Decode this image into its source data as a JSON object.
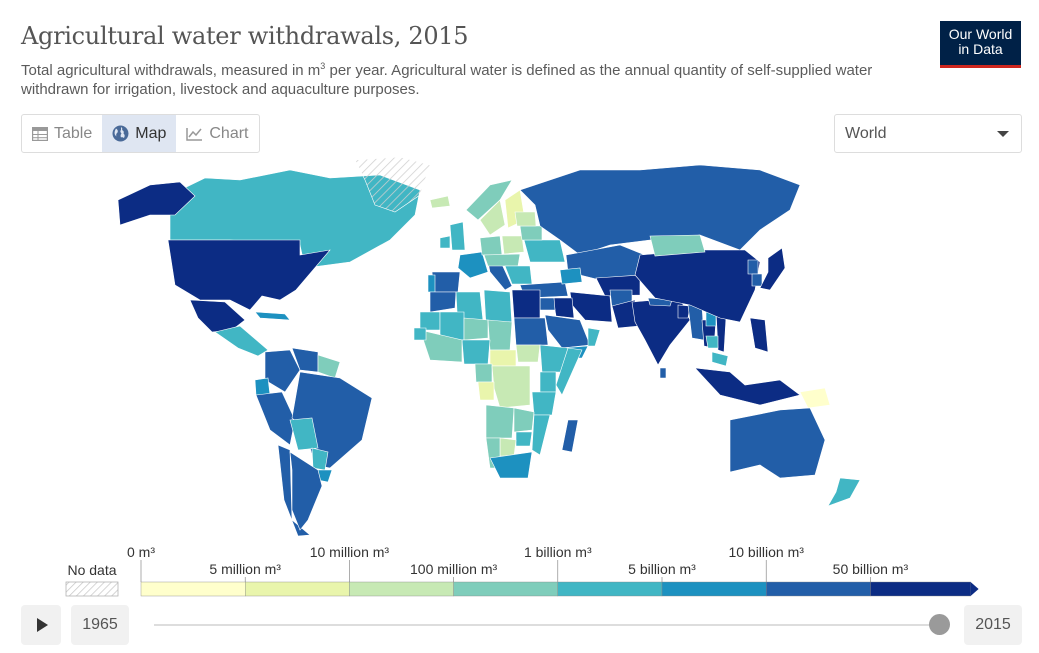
{
  "header": {
    "title": "Agricultural water withdrawals, 2015",
    "subtitle_part1": "Total agricultural withdrawals, measured in m",
    "subtitle_sup": "3",
    "subtitle_part2": " per year. Agricultural water is defined as the annual quantity of self-supplied water withdrawn for irrigation, livestock and aquaculture purposes."
  },
  "logo": {
    "line1": "Our World",
    "line2": "in Data"
  },
  "tabs": [
    {
      "label": "Table",
      "icon": "table-icon",
      "active": false
    },
    {
      "label": "Map",
      "icon": "globe-icon",
      "active": true
    },
    {
      "label": "Chart",
      "icon": "line-chart-icon",
      "active": false
    }
  ],
  "region_select": {
    "value": "World"
  },
  "chart_data": {
    "type": "choropleth-map",
    "region": "World",
    "year": 2015,
    "legend": {
      "no_data_label": "No data",
      "bins": [
        {
          "from": "0 m³",
          "to": "5 million m³",
          "color": "#ffffcc"
        },
        {
          "from": "5 million m³",
          "to": "10 million m³",
          "color": "#e9f5ac"
        },
        {
          "from": "10 million m³",
          "to": "100 million m³",
          "color": "#c7e9b4"
        },
        {
          "from": "100 million m³",
          "to": "1 billion m³",
          "color": "#7fcdbb"
        },
        {
          "from": "1 billion m³",
          "to": "5 billion m³",
          "color": "#41b6c4"
        },
        {
          "from": "5 billion m³",
          "to": "10 billion m³",
          "color": "#1d91c0"
        },
        {
          "from": "10 billion m³",
          "to": "50 billion m³",
          "color": "#225ea8"
        },
        {
          "from": "50 billion m³",
          "to": "",
          "color": "#0c2c84"
        }
      ],
      "top_labels": [
        "0 m³",
        "10 million m³",
        "1 billion m³",
        "10 billion m³"
      ],
      "bottom_labels": [
        "5 million m³",
        "100 million m³",
        "5 billion m³",
        "50 billion m³"
      ]
    },
    "regions": [
      {
        "name": "Canada",
        "bin": 4
      },
      {
        "name": "Alaska",
        "bin": 7
      },
      {
        "name": "Greenland",
        "bin": -1
      },
      {
        "name": "United States",
        "bin": 7
      },
      {
        "name": "Mexico",
        "bin": 7
      },
      {
        "name": "Central America",
        "bin": 4
      },
      {
        "name": "Cuba",
        "bin": 5
      },
      {
        "name": "Colombia",
        "bin": 6
      },
      {
        "name": "Venezuela",
        "bin": 6
      },
      {
        "name": "Guyanas",
        "bin": 3
      },
      {
        "name": "Ecuador",
        "bin": 5
      },
      {
        "name": "Peru",
        "bin": 6
      },
      {
        "name": "Brazil",
        "bin": 6
      },
      {
        "name": "Bolivia",
        "bin": 4
      },
      {
        "name": "Paraguay",
        "bin": 4
      },
      {
        "name": "Uruguay",
        "bin": 5
      },
      {
        "name": "Chile",
        "bin": 6
      },
      {
        "name": "Argentina",
        "bin": 6
      },
      {
        "name": "Iceland",
        "bin": 2
      },
      {
        "name": "Norway",
        "bin": 3
      },
      {
        "name": "Sweden",
        "bin": 2
      },
      {
        "name": "Finland",
        "bin": 1
      },
      {
        "name": "United Kingdom",
        "bin": 4
      },
      {
        "name": "Ireland",
        "bin": 4
      },
      {
        "name": "France",
        "bin": 5
      },
      {
        "name": "Spain",
        "bin": 6
      },
      {
        "name": "Portugal",
        "bin": 5
      },
      {
        "name": "Germany",
        "bin": 3
      },
      {
        "name": "Poland",
        "bin": 2
      },
      {
        "name": "Italy",
        "bin": 6
      },
      {
        "name": "Central Europe",
        "bin": 3
      },
      {
        "name": "Balkans",
        "bin": 4
      },
      {
        "name": "Ukraine",
        "bin": 4
      },
      {
        "name": "Belarus",
        "bin": 3
      },
      {
        "name": "Baltics",
        "bin": 2
      },
      {
        "name": "Russia",
        "bin": 6
      },
      {
        "name": "Kazakhstan",
        "bin": 6
      },
      {
        "name": "Central Asia",
        "bin": 7
      },
      {
        "name": "Turkey",
        "bin": 6
      },
      {
        "name": "Caucasus",
        "bin": 5
      },
      {
        "name": "Iran",
        "bin": 7
      },
      {
        "name": "Iraq",
        "bin": 7
      },
      {
        "name": "Syria",
        "bin": 6
      },
      {
        "name": "Saudi Arabia",
        "bin": 6
      },
      {
        "name": "Yemen",
        "bin": 5
      },
      {
        "name": "Oman",
        "bin": 4
      },
      {
        "name": "Afghanistan",
        "bin": 6
      },
      {
        "name": "Pakistan",
        "bin": 7
      },
      {
        "name": "India",
        "bin": 7
      },
      {
        "name": "Nepal",
        "bin": 6
      },
      {
        "name": "Bangladesh",
        "bin": 7
      },
      {
        "name": "Sri Lanka",
        "bin": 6
      },
      {
        "name": "Myanmar",
        "bin": 6
      },
      {
        "name": "Thailand",
        "bin": 7
      },
      {
        "name": "Vietnam",
        "bin": 7
      },
      {
        "name": "Laos",
        "bin": 5
      },
      {
        "name": "Cambodia",
        "bin": 4
      },
      {
        "name": "Malaysia",
        "bin": 4
      },
      {
        "name": "China",
        "bin": 7
      },
      {
        "name": "Mongolia",
        "bin": 3
      },
      {
        "name": "North Korea",
        "bin": 6
      },
      {
        "name": "South Korea",
        "bin": 6
      },
      {
        "name": "Japan",
        "bin": 7
      },
      {
        "name": "Philippines",
        "bin": 7
      },
      {
        "name": "Indonesia",
        "bin": 7
      },
      {
        "name": "Papua New Guinea",
        "bin": 0
      },
      {
        "name": "Australia",
        "bin": 6
      },
      {
        "name": "New Zealand",
        "bin": 4
      },
      {
        "name": "Morocco",
        "bin": 6
      },
      {
        "name": "Algeria",
        "bin": 4
      },
      {
        "name": "Libya",
        "bin": 4
      },
      {
        "name": "Egypt",
        "bin": 7
      },
      {
        "name": "Sudan",
        "bin": 6
      },
      {
        "name": "South Sudan",
        "bin": 2
      },
      {
        "name": "Ethiopia",
        "bin": 4
      },
      {
        "name": "Somalia",
        "bin": 4
      },
      {
        "name": "Kenya",
        "bin": 4
      },
      {
        "name": "Tanzania",
        "bin": 4
      },
      {
        "name": "Mauritania",
        "bin": 4
      },
      {
        "name": "Mali",
        "bin": 4
      },
      {
        "name": "Niger",
        "bin": 3
      },
      {
        "name": "Chad",
        "bin": 3
      },
      {
        "name": "Nigeria",
        "bin": 4
      },
      {
        "name": "West Africa",
        "bin": 3
      },
      {
        "name": "Senegal",
        "bin": 4
      },
      {
        "name": "Central African Republic",
        "bin": 1
      },
      {
        "name": "Cameroon",
        "bin": 3
      },
      {
        "name": "DR Congo",
        "bin": 2
      },
      {
        "name": "Congo",
        "bin": 1
      },
      {
        "name": "Angola",
        "bin": 3
      },
      {
        "name": "Zambia",
        "bin": 3
      },
      {
        "name": "Zimbabwe",
        "bin": 4
      },
      {
        "name": "Botswana",
        "bin": 2
      },
      {
        "name": "Namibia",
        "bin": 3
      },
      {
        "name": "Mozambique",
        "bin": 4
      },
      {
        "name": "South Africa",
        "bin": 5
      },
      {
        "name": "Madagascar",
        "bin": 6
      }
    ]
  },
  "timeline": {
    "start_year": "1965",
    "end_year": "2015"
  }
}
